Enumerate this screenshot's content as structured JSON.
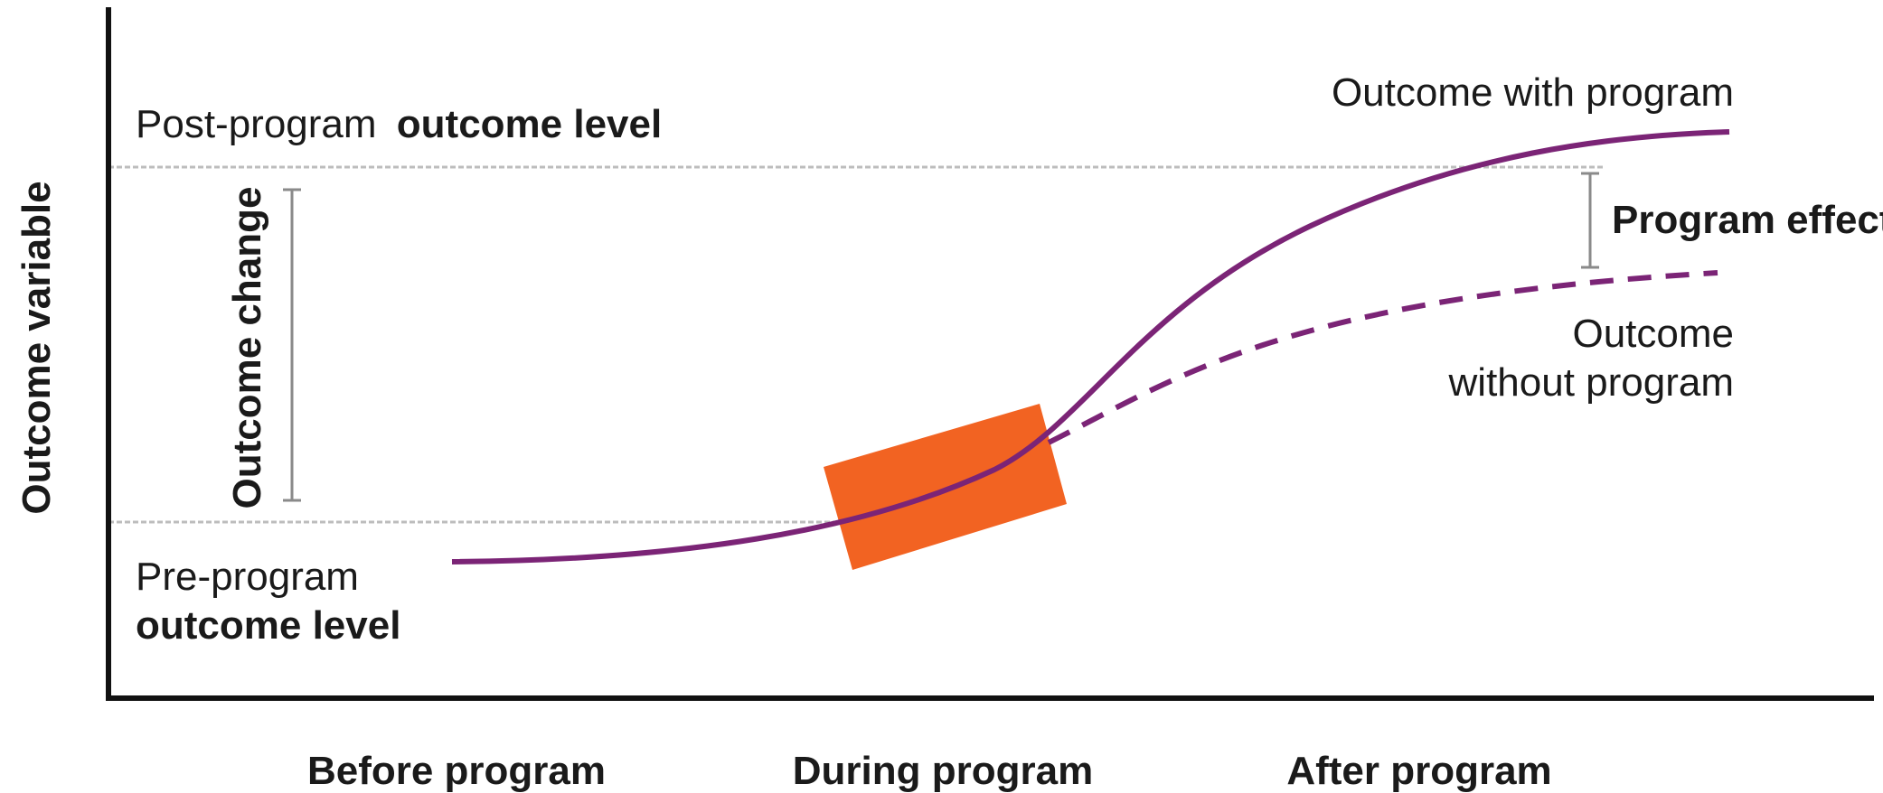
{
  "colors": {
    "axis": "#111111",
    "curve": "#7b2476",
    "program_box": "#f26322",
    "reference_line": "#bdbdbd",
    "bracket": "#8a8a8a"
  },
  "axes": {
    "y_title": "Outcome variable",
    "x_ticks": [
      "Before program",
      "During program",
      "After program"
    ]
  },
  "annotations": {
    "post_level_prefix": "Post-program",
    "post_level_bold": "outcome level",
    "pre_level_line1": "Pre-program",
    "pre_level_line2": "outcome level",
    "outcome_change": "Outcome change",
    "program_effect": "Program effect",
    "with_program": "Outcome with program",
    "without_program_line1": "Outcome",
    "without_program_line2": "without program"
  },
  "series": {
    "with_program": {
      "style": "solid"
    },
    "without_program": {
      "style": "dashed"
    }
  }
}
